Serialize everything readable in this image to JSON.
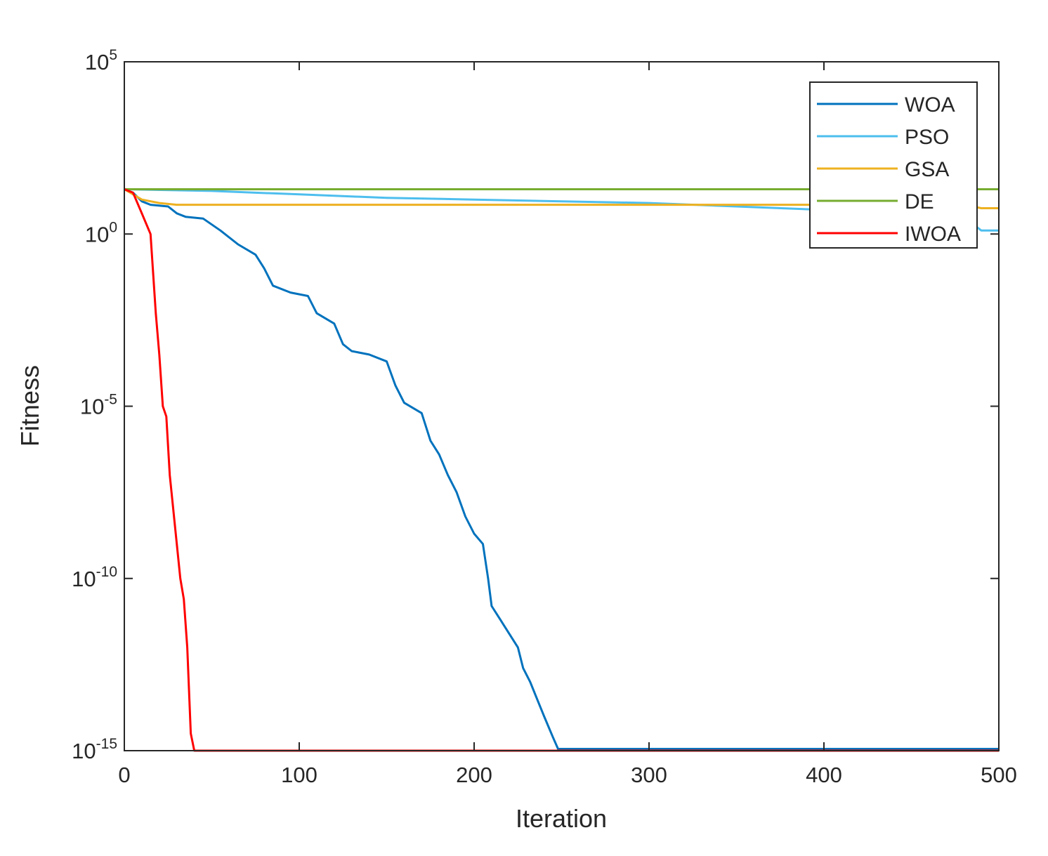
{
  "chart_data": {
    "type": "line",
    "title": "",
    "xlabel": "Iteration",
    "ylabel": "Fitness",
    "xlim": [
      0,
      500
    ],
    "ylim_exponent": [
      -15,
      5
    ],
    "yscale": "log",
    "grid": false,
    "legend_position": "top-right",
    "x_ticks": [
      "0",
      "100",
      "200",
      "300",
      "400",
      "500"
    ],
    "y_ticks": [
      {
        "exponent": -15,
        "base": "10",
        "sup": "-15"
      },
      {
        "exponent": -10,
        "base": "10",
        "sup": "-10"
      },
      {
        "exponent": -5,
        "base": "10",
        "sup": "-5"
      },
      {
        "exponent": 0,
        "base": "10",
        "sup": "0"
      },
      {
        "exponent": 5,
        "base": "10",
        "sup": "5"
      }
    ],
    "series": [
      {
        "name": "WOA",
        "color": "#0072BD",
        "log10_points": [
          [
            0,
            1.3
          ],
          [
            5,
            1.2
          ],
          [
            10,
            0.95
          ],
          [
            15,
            0.85
          ],
          [
            25,
            0.8
          ],
          [
            30,
            0.6
          ],
          [
            35,
            0.5
          ],
          [
            45,
            0.45
          ],
          [
            55,
            0.1
          ],
          [
            65,
            -0.3
          ],
          [
            75,
            -0.6
          ],
          [
            80,
            -1.0
          ],
          [
            85,
            -1.5
          ],
          [
            95,
            -1.7
          ],
          [
            105,
            -1.8
          ],
          [
            110,
            -2.3
          ],
          [
            120,
            -2.6
          ],
          [
            125,
            -3.2
          ],
          [
            130,
            -3.4
          ],
          [
            140,
            -3.5
          ],
          [
            150,
            -3.7
          ],
          [
            155,
            -4.4
          ],
          [
            160,
            -4.9
          ],
          [
            170,
            -5.2
          ],
          [
            175,
            -6.0
          ],
          [
            180,
            -6.4
          ],
          [
            185,
            -7.0
          ],
          [
            190,
            -7.5
          ],
          [
            195,
            -8.2
          ],
          [
            200,
            -8.7
          ],
          [
            205,
            -9.0
          ],
          [
            208,
            -10.0
          ],
          [
            210,
            -10.8
          ],
          [
            215,
            -11.2
          ],
          [
            220,
            -11.6
          ],
          [
            225,
            -12.0
          ],
          [
            228,
            -12.6
          ],
          [
            232,
            -13.0
          ],
          [
            236,
            -13.5
          ],
          [
            240,
            -14.0
          ],
          [
            245,
            -14.6
          ],
          [
            248,
            -14.95
          ],
          [
            252,
            -14.95
          ],
          [
            500,
            -14.95
          ]
        ]
      },
      {
        "name": "PSO",
        "color": "#4DBEEE",
        "log10_points": [
          [
            0,
            1.3
          ],
          [
            50,
            1.25
          ],
          [
            100,
            1.15
          ],
          [
            150,
            1.05
          ],
          [
            200,
            1.0
          ],
          [
            250,
            0.95
          ],
          [
            300,
            0.9
          ],
          [
            350,
            0.8
          ],
          [
            400,
            0.7
          ],
          [
            450,
            0.65
          ],
          [
            480,
            0.6
          ],
          [
            485,
            0.3
          ],
          [
            490,
            0.1
          ],
          [
            500,
            0.1
          ]
        ]
      },
      {
        "name": "GSA",
        "color": "#EDB120",
        "log10_points": [
          [
            0,
            1.3
          ],
          [
            10,
            1.0
          ],
          [
            20,
            0.9
          ],
          [
            30,
            0.85
          ],
          [
            50,
            0.85
          ],
          [
            100,
            0.85
          ],
          [
            200,
            0.85
          ],
          [
            300,
            0.85
          ],
          [
            400,
            0.85
          ],
          [
            480,
            0.85
          ],
          [
            490,
            0.75
          ],
          [
            500,
            0.75
          ]
        ]
      },
      {
        "name": "DE",
        "color": "#77AC30",
        "log10_points": [
          [
            0,
            1.3
          ],
          [
            500,
            1.3
          ]
        ]
      },
      {
        "name": "IWOA",
        "color": "#FF0000",
        "log10_points": [
          [
            0,
            1.3
          ],
          [
            5,
            1.2
          ],
          [
            10,
            0.6
          ],
          [
            15,
            0.0
          ],
          [
            18,
            -2.3
          ],
          [
            20,
            -3.5
          ],
          [
            22,
            -5.0
          ],
          [
            24,
            -5.3
          ],
          [
            26,
            -7.0
          ],
          [
            28,
            -8.0
          ],
          [
            30,
            -9.0
          ],
          [
            32,
            -10.0
          ],
          [
            34,
            -10.6
          ],
          [
            36,
            -12.0
          ],
          [
            38,
            -14.5
          ],
          [
            40,
            -15.0
          ],
          [
            500,
            -15.0
          ]
        ]
      }
    ]
  }
}
